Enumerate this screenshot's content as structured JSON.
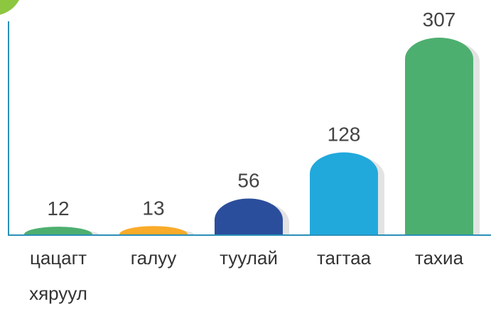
{
  "chart_data": {
    "type": "bar",
    "categories": [
      "цацагт хяруул",
      "галуу",
      "туулай",
      "тагтаа",
      "тахиа"
    ],
    "values": [
      12,
      13,
      56,
      128,
      307
    ],
    "colors": [
      "#4daf6f",
      "#f9ab2a",
      "#2b4e9c",
      "#21a9dc",
      "#4daf6f"
    ]
  }
}
